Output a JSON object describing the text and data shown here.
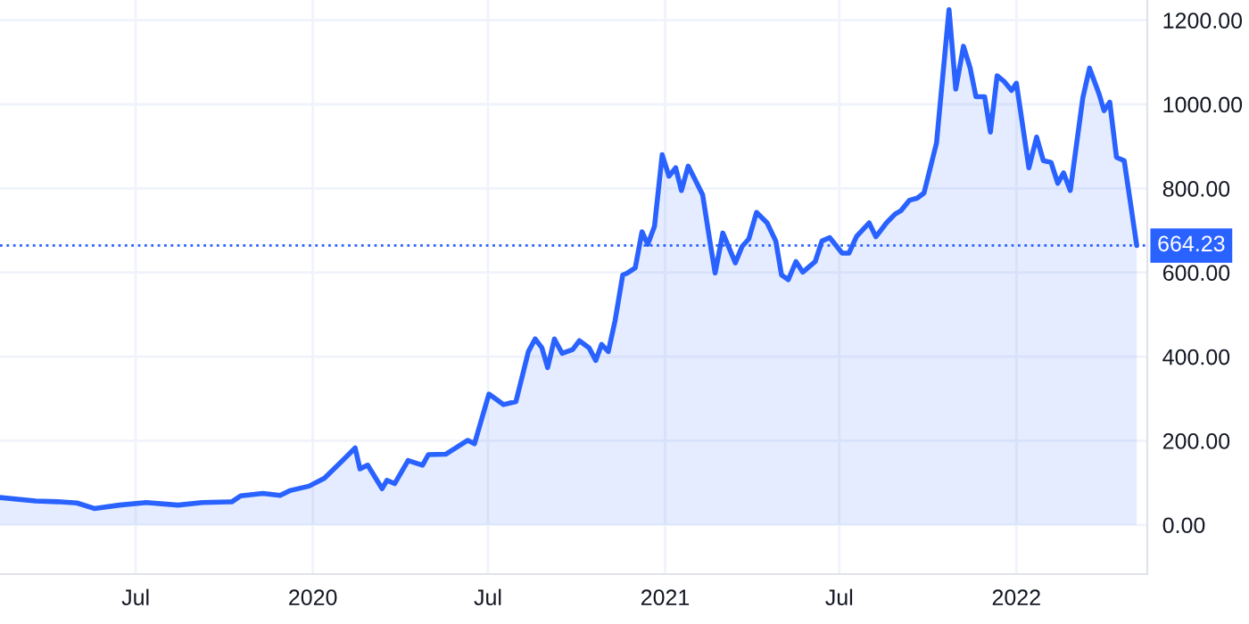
{
  "chart_data": {
    "type": "area",
    "x": [
      "2019-02-10",
      "2019-03-19",
      "2019-04-11",
      "2019-05-01",
      "2019-05-19",
      "2019-06-14",
      "2019-07-12",
      "2019-08-14",
      "2019-09-08",
      "2019-10-09",
      "2019-10-18",
      "2019-11-10",
      "2019-11-28",
      "2019-12-09",
      "2019-12-28",
      "2020-01-13",
      "2020-02-01",
      "2020-02-14",
      "2020-02-19",
      "2020-02-27",
      "2020-03-13",
      "2020-03-18",
      "2020-03-26",
      "2020-04-09",
      "2020-04-24",
      "2020-04-30",
      "2020-05-18",
      "2020-06-10",
      "2020-06-17",
      "2020-07-02",
      "2020-07-17",
      "2020-07-30",
      "2020-08-12",
      "2020-08-19",
      "2020-08-26",
      "2020-09-01",
      "2020-09-08",
      "2020-09-16",
      "2020-09-27",
      "2020-10-04",
      "2020-10-14",
      "2020-10-21",
      "2020-10-27",
      "2020-11-03",
      "2020-11-10",
      "2020-11-18",
      "2020-11-23",
      "2020-12-01",
      "2020-12-08",
      "2020-12-14",
      "2020-12-21",
      "2020-12-29",
      "2021-01-05",
      "2021-01-12",
      "2021-01-18",
      "2021-01-25",
      "2021-02-02",
      "2021-02-09",
      "2021-02-17",
      "2021-02-22",
      "2021-03-02",
      "2021-03-15",
      "2021-03-22",
      "2021-03-29",
      "2021-04-06",
      "2021-04-17",
      "2021-04-26",
      "2021-05-02",
      "2021-05-09",
      "2021-05-17",
      "2021-05-24",
      "2021-06-06",
      "2021-06-13",
      "2021-06-21",
      "2021-07-04",
      "2021-07-11",
      "2021-07-19",
      "2021-08-01",
      "2021-08-08",
      "2021-08-19",
      "2021-08-28",
      "2021-09-03",
      "2021-09-12",
      "2021-09-20",
      "2021-09-27",
      "2021-10-10",
      "2021-10-23",
      "2021-10-30",
      "2021-11-07",
      "2021-11-14",
      "2021-11-20",
      "2021-11-29",
      "2021-12-05",
      "2021-12-12",
      "2021-12-19",
      "2021-12-27",
      "2022-01-01",
      "2022-01-14",
      "2022-01-22",
      "2022-01-29",
      "2022-02-06",
      "2022-02-13",
      "2022-02-19",
      "2022-02-26",
      "2022-03-11",
      "2022-03-18",
      "2022-03-28",
      "2022-04-02",
      "2022-04-08",
      "2022-04-15",
      "2022-04-23",
      "2022-04-28",
      "2022-05-06"
    ],
    "series": [
      {
        "color": "#2962ff",
        "values": [
          65,
          57,
          55,
          52,
          39,
          47,
          53,
          47,
          53,
          55,
          69,
          75,
          70,
          82,
          92,
          111,
          153,
          183,
          133,
          142,
          86,
          106,
          98,
          153,
          142,
          167,
          168,
          201,
          193,
          311,
          286,
          293,
          412,
          442,
          421,
          374,
          442,
          408,
          417,
          438,
          421,
          391,
          429,
          412,
          485,
          594,
          599,
          611,
          697,
          667,
          710,
          880,
          829,
          849,
          795,
          853,
          817,
          785,
          668,
          599,
          694,
          623,
          662,
          680,
          743,
          718,
          675,
          594,
          583,
          626,
          601,
          626,
          675,
          683,
          646,
          646,
          686,
          718,
          685,
          718,
          739,
          747,
          772,
          777,
          789,
          908,
          1225,
          1036,
          1138,
          1086,
          1018,
          1018,
          934,
          1068,
          1055,
          1033,
          1050,
          849,
          922,
          866,
          862,
          812,
          837,
          795,
          1015,
          1086,
          1024,
          985,
          1005,
          874,
          866,
          789,
          664.23
        ]
      }
    ],
    "xlim": [
      "2019-02-10",
      "2022-05-17"
    ],
    "xticks": [
      {
        "value": "2019-07-01",
        "label": "Jul"
      },
      {
        "value": "2020-01-01",
        "label": "2020"
      },
      {
        "value": "2020-07-01",
        "label": "Jul"
      },
      {
        "value": "2021-01-01",
        "label": "2021"
      },
      {
        "value": "2021-07-01",
        "label": "Jul"
      },
      {
        "value": "2022-01-01",
        "label": "2022"
      }
    ],
    "ylim": [
      -117,
      1248
    ],
    "yticks": [
      {
        "value": 0,
        "label": "0.00"
      },
      {
        "value": 200,
        "label": "200.00"
      },
      {
        "value": 400,
        "label": "400.00"
      },
      {
        "value": 600,
        "label": "600.00"
      },
      {
        "value": 800,
        "label": "800.00"
      },
      {
        "value": 1000,
        "label": "1000.00"
      },
      {
        "value": 1200,
        "label": "1200.00"
      }
    ],
    "ref_lines": [
      {
        "axis": "y",
        "value": 664.23,
        "label": "664.23",
        "color": "#2962ff",
        "line_style": "dotted"
      }
    ],
    "grid": true,
    "line_style": "solid"
  }
}
